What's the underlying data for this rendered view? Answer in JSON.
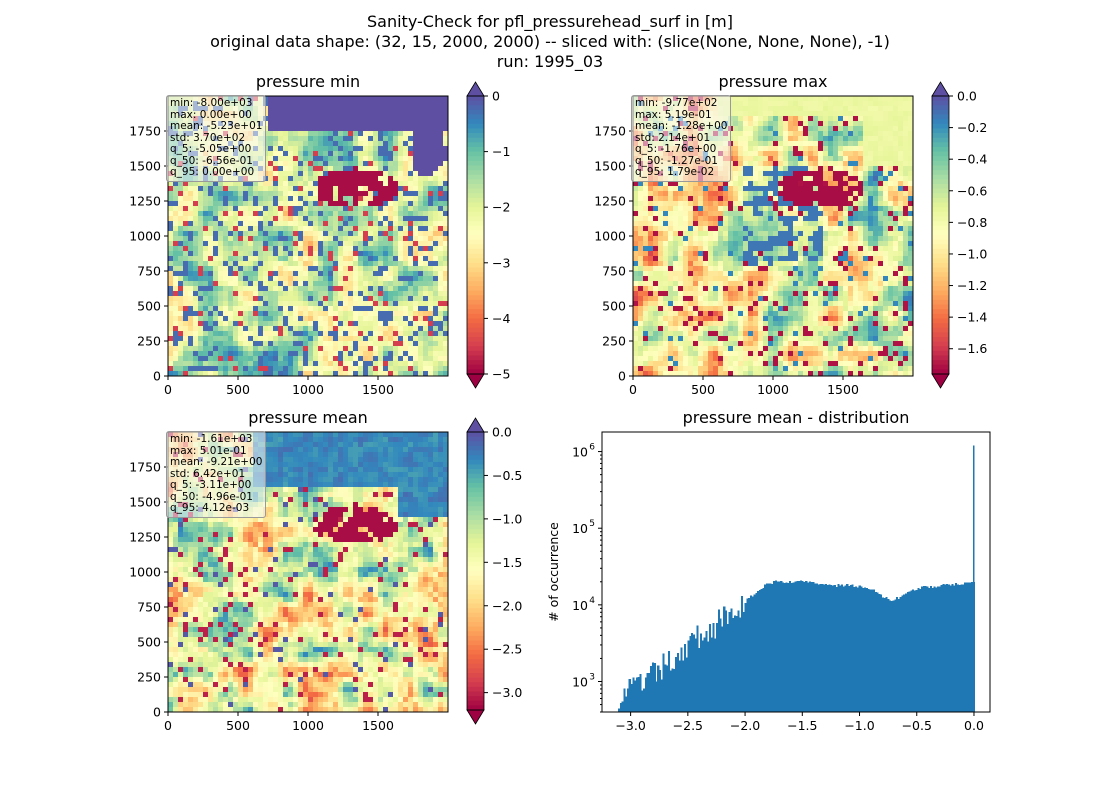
{
  "title_lines": [
    "Sanity-Check for pfl_pressurehead_surf in [m]",
    "original data shape: (32, 15, 2000, 2000) -- sliced with: (slice(None, None, None), -1)",
    "run: 1995_03"
  ],
  "colors": {
    "hist_bar": "#1f77b4",
    "spectral": [
      "#9e0142",
      "#d53e4f",
      "#f46d43",
      "#fdae61",
      "#fee08b",
      "#ffffbf",
      "#e6f598",
      "#abdda4",
      "#66c2a5",
      "#3288bd",
      "#5e4fa2"
    ]
  },
  "chart_data": [
    {
      "type": "heatmap",
      "title": "pressure min",
      "xlim": [
        0,
        2000
      ],
      "ylim": [
        0,
        2000
      ],
      "xticks": [
        0,
        500,
        1000,
        1500
      ],
      "yticks": [
        0,
        250,
        500,
        750,
        1000,
        1250,
        1500,
        1750
      ],
      "colormap": "Spectral",
      "clim": [
        -5,
        0
      ],
      "colorbar_ticks": [
        "0",
        "−1",
        "−2",
        "−3",
        "−4",
        "−5"
      ],
      "colorbar_extend": [
        "both"
      ],
      "stats": [
        "min: -8.00e+03",
        "max: 0.00e+00",
        "mean: -5.23e+01",
        "std: 3.70e+02",
        "q_5: -5.05e+00",
        "q_50: -6.56e-01",
        "q_95: 0.00e+00"
      ]
    },
    {
      "type": "heatmap",
      "title": "pressure max",
      "xlim": [
        0,
        2000
      ],
      "ylim": [
        0,
        2000
      ],
      "xticks": [
        0,
        500,
        1000,
        1500
      ],
      "yticks": [
        0,
        250,
        500,
        750,
        1000,
        1250,
        1500,
        1750
      ],
      "colormap": "Spectral",
      "clim": [
        -1.76,
        0.0
      ],
      "colorbar_ticks": [
        "0.0",
        "−0.2",
        "−0.4",
        "−0.6",
        "−0.8",
        "−1.0",
        "−1.2",
        "−1.4",
        "−1.6"
      ],
      "colorbar_extend": [
        "both"
      ],
      "stats": [
        "min: -9.77e+02",
        "max: 5.19e-01",
        "mean: -1.28e+00",
        "std: 2.14e+01",
        "q_5: -1.76e+00",
        "q_50: -1.27e-01",
        "q_95: 1.79e-02"
      ]
    },
    {
      "type": "heatmap",
      "title": "pressure mean",
      "xlim": [
        0,
        2000
      ],
      "ylim": [
        0,
        2000
      ],
      "xticks": [
        0,
        500,
        1000,
        1500
      ],
      "yticks": [
        0,
        250,
        500,
        750,
        1000,
        1250,
        1500,
        1750
      ],
      "colormap": "Spectral",
      "clim": [
        -3.2,
        0.0
      ],
      "colorbar_ticks": [
        "0.0",
        "−0.5",
        "−1.0",
        "−1.5",
        "−2.0",
        "−2.5",
        "−3.0"
      ],
      "colorbar_extend": [
        "both"
      ],
      "stats": [
        "min: -1.61e+03",
        "max: 5.01e-01",
        "mean: -9.21e+00",
        "std: 6.42e+01",
        "q_5: -3.11e+00",
        "q_50: -4.96e-01",
        "q_95: 4.12e-03"
      ]
    },
    {
      "type": "bar",
      "title": "pressure mean - distribution",
      "ylabel": "# of occurrence",
      "xlabel": "",
      "yscale": "log",
      "xlim": [
        -3.25,
        0.14
      ],
      "ylim": [
        400,
        1800000
      ],
      "xticks": [
        -3.0,
        -2.5,
        -2.0,
        -1.5,
        -1.0,
        -0.5,
        0.0
      ],
      "xtick_labels": [
        "−3.0",
        "−2.5",
        "−2.0",
        "−1.5",
        "−1.0",
        "−0.5",
        "0.0"
      ],
      "ytick_labels": [
        [
          "10",
          "3"
        ],
        [
          "10",
          "4"
        ],
        [
          "10",
          "5"
        ],
        [
          "10",
          "6"
        ]
      ],
      "bin_range": [
        -3.11,
        0.005
      ],
      "counts_profile": [
        [
          -3.11,
          650
        ],
        [
          -3.0,
          800
        ],
        [
          -2.9,
          950
        ],
        [
          -2.8,
          1200
        ],
        [
          -2.7,
          1600
        ],
        [
          -2.6,
          2200
        ],
        [
          -2.5,
          3000
        ],
        [
          -2.4,
          3900
        ],
        [
          -2.3,
          4800
        ],
        [
          -2.2,
          6300
        ],
        [
          -2.1,
          8500
        ],
        [
          -2.0,
          11000
        ],
        [
          -1.9,
          15000
        ],
        [
          -1.8,
          19000
        ],
        [
          -1.7,
          20500
        ],
        [
          -1.6,
          20000
        ],
        [
          -1.5,
          20000
        ],
        [
          -1.4,
          19500
        ],
        [
          -1.3,
          18500
        ],
        [
          -1.2,
          18000
        ],
        [
          -1.1,
          18000
        ],
        [
          -1.0,
          17500
        ],
        [
          -0.9,
          16000
        ],
        [
          -0.8,
          13000
        ],
        [
          -0.72,
          11500
        ],
        [
          -0.65,
          12500
        ],
        [
          -0.55,
          15500
        ],
        [
          -0.45,
          17000
        ],
        [
          -0.3,
          17500
        ],
        [
          -0.2,
          18500
        ],
        [
          -0.1,
          19000
        ],
        [
          0.0,
          20000
        ]
      ],
      "spike_value": 1200000
    }
  ]
}
